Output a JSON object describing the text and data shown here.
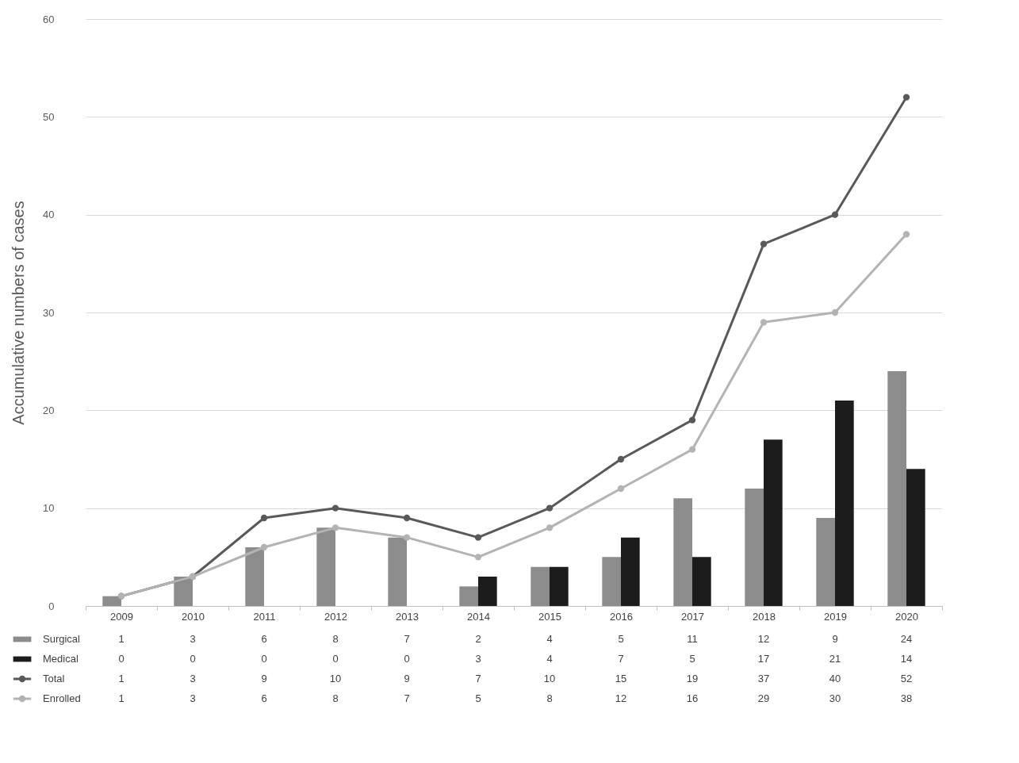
{
  "chart_data": {
    "type": "bar",
    "ylabel": "Accumulative numbers of cases",
    "categories": [
      "2009",
      "2010",
      "2011",
      "2012",
      "2013",
      "2014",
      "2015",
      "2016",
      "2017",
      "2018",
      "2019",
      "2020"
    ],
    "series": [
      {
        "name": "Surgical",
        "color": "#8c8c8c",
        "values": [
          1,
          3,
          6,
          8,
          7,
          2,
          4,
          5,
          11,
          12,
          9,
          24
        ]
      },
      {
        "name": "Medical",
        "color": "#1c1c1c",
        "values": [
          0,
          0,
          0,
          0,
          0,
          3,
          4,
          7,
          5,
          17,
          21,
          14
        ]
      },
      {
        "name": "Total",
        "type": "line",
        "color": "#595959",
        "values": [
          1,
          3,
          9,
          10,
          9,
          7,
          10,
          15,
          19,
          37,
          40,
          52
        ]
      },
      {
        "name": "Enrolled",
        "type": "line",
        "color": "#b3b3b3",
        "values": [
          1,
          3,
          6,
          8,
          7,
          5,
          8,
          12,
          16,
          29,
          30,
          38
        ]
      }
    ],
    "ylim": [
      0,
      60
    ],
    "yticks": [
      0,
      10,
      20,
      30,
      40,
      50,
      60
    ],
    "grid": "y",
    "legend": "bottom",
    "data_labels": true,
    "marker": "circle",
    "line_style": "solid"
  }
}
